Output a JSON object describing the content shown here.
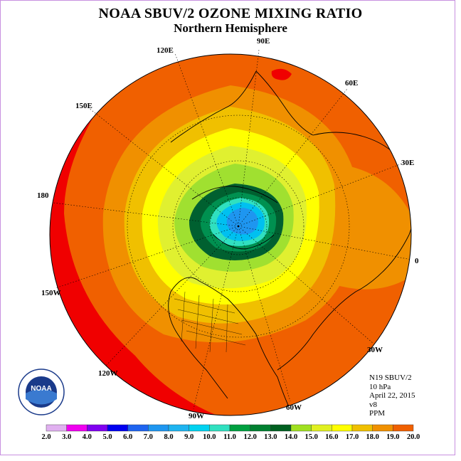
{
  "title": "NOAA SBUV/2 OZONE MIXING RATIO",
  "subtitle": "Northern Hemisphere",
  "longitude_labels": [
    "90E",
    "60E",
    "30E",
    "0",
    "30W",
    "60W",
    "90W",
    "120W",
    "150W",
    "180",
    "150E",
    "120E"
  ],
  "info": {
    "satellite": "N19 SBUV/2",
    "level": "10 hPa",
    "date": "April 22, 2015",
    "version": "v8",
    "units": "PPM"
  },
  "logo": {
    "text": "NOAA",
    "ring_text": "NATIONAL OCEANIC AND ATMOSPHERIC ADMINISTRATION U.S. DEPARTMENT OF COMMERCE"
  },
  "colorbar": {
    "labels": [
      "2.0",
      "3.0",
      "4.0",
      "5.0",
      "6.0",
      "7.0",
      "8.0",
      "9.0",
      "10.0",
      "11.0",
      "12.0",
      "13.0",
      "14.0",
      "15.0",
      "16.0",
      "17.0",
      "18.0",
      "19.0",
      "20.0"
    ],
    "colors": [
      "#c080f0",
      "#e0b0f0",
      "#f000f0",
      "#8000f0",
      "#0000f0",
      "#1e64f0",
      "#1e96f0",
      "#1eb4f0",
      "#00d2f0",
      "#30e0c0",
      "#00a040",
      "#008030",
      "#006020",
      "#a0e020",
      "#e0f020",
      "#ffff00",
      "#f0c000",
      "#f09000",
      "#f06000",
      "#f00000",
      "#a05030"
    ]
  },
  "map_colors": {
    "c11": "#009050",
    "c12": "#006030",
    "c13": "#a0e030",
    "c14": "#e0f030",
    "c15": "#ffff00",
    "c16": "#f0c000",
    "c17": "#f09000",
    "c18": "#f06000",
    "c19": "#f00000",
    "c10": "#30e0c0",
    "c9": "#00c0f0",
    "c8": "#1e96f0"
  }
}
